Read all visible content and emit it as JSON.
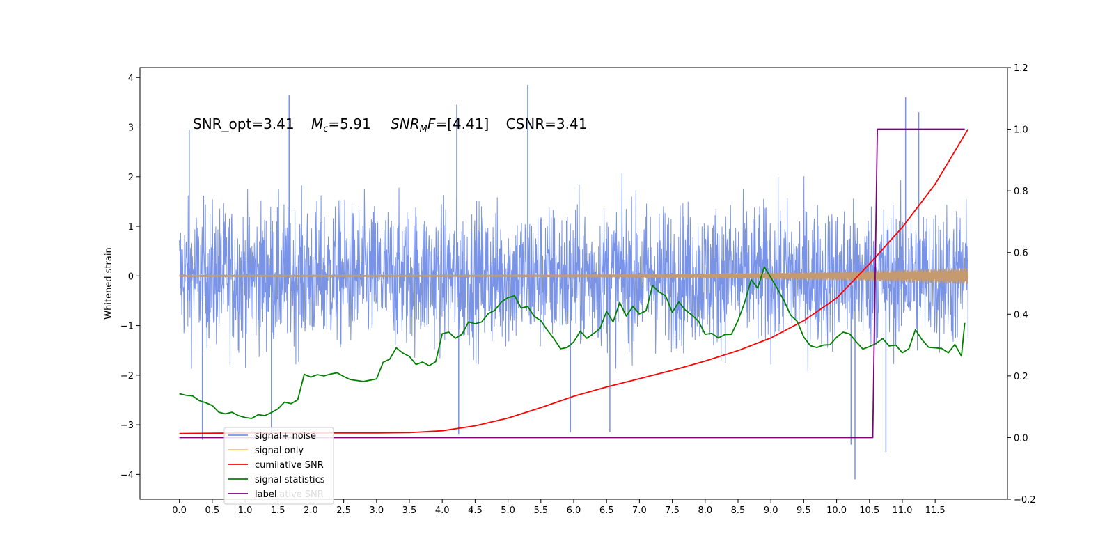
{
  "chart_data": {
    "type": "line",
    "title": "",
    "xlabel": "",
    "ylabel": "Whitened strain",
    "xlim": [
      -0.6,
      12.6
    ],
    "ylim": [
      -4.5,
      4.2
    ],
    "y2lim": [
      -0.2,
      1.2
    ],
    "x_ticks": [
      0.0,
      0.5,
      1.0,
      1.5,
      2.0,
      2.5,
      3.0,
      3.5,
      4.0,
      4.5,
      5.0,
      5.5,
      6.0,
      6.5,
      7.0,
      7.5,
      8.0,
      8.5,
      9.0,
      9.5,
      10.0,
      10.5,
      11.0,
      11.5
    ],
    "x_tick_labels": [
      "0.0",
      "0.5",
      "1.0",
      "1.5",
      "2.0",
      "2.5",
      "3.0",
      "3.5",
      "4.0",
      "4.5",
      "5.0",
      "5.5",
      "6.0",
      "6.5",
      "7.0",
      "7.5",
      "8.0",
      "8.5",
      "9.0",
      "9.5",
      "10.0",
      "10.5",
      "11.0",
      "11.5"
    ],
    "y_ticks": [
      4,
      3,
      2,
      1,
      0,
      -1,
      -2,
      -3,
      -4
    ],
    "y_tick_labels": [
      "4",
      "3",
      "2",
      "1",
      "0",
      "−1",
      "−2",
      "−3",
      "−4"
    ],
    "y2_ticks": [
      1.2,
      1.0,
      0.8,
      0.6,
      0.4,
      0.2,
      0.0,
      -0.2
    ],
    "y2_tick_labels": [
      "1.2",
      "1.0",
      "0.8",
      "0.6",
      "0.4",
      "0.2",
      "0.0",
      "−0.2"
    ],
    "annotation": {
      "snr_opt": "SNR_opt=3.41",
      "mc_symbol": "M",
      "mc_sub": "c",
      "mc_value": "=5.91",
      "snr_mf_symbol": "SNR",
      "snr_mf_sub": "M",
      "snr_mf_f": "F",
      "snr_mf_value": "=[4.41]",
      "csnr": "CSNR=3.41"
    },
    "legend": {
      "placement": "lower-left",
      "entries": [
        "signal+ noise",
        "signal only",
        "cumilative SNR",
        "signal statistics",
        "label"
      ],
      "ghost_text": "cumilative SNR"
    },
    "series": [
      {
        "name": "signal+ noise",
        "axis": "left",
        "color": "#7893e8",
        "style": "noise",
        "x_range": [
          0.0,
          12.0
        ],
        "band": [
          -2.0,
          2.0
        ],
        "spikes": [
          {
            "x": 0.15,
            "y": 2.95
          },
          {
            "x": 0.35,
            "y": -3.3
          },
          {
            "x": 1.4,
            "y": -3.2
          },
          {
            "x": 1.67,
            "y": 3.65
          },
          {
            "x": 4.22,
            "y": 3.45
          },
          {
            "x": 4.25,
            "y": -3.2
          },
          {
            "x": 5.3,
            "y": 3.85
          },
          {
            "x": 5.95,
            "y": -3.15
          },
          {
            "x": 6.55,
            "y": -3.15
          },
          {
            "x": 10.22,
            "y": -3.4
          },
          {
            "x": 10.28,
            "y": -4.1
          },
          {
            "x": 10.75,
            "y": -3.55
          },
          {
            "x": 11.05,
            "y": 3.6
          },
          {
            "x": 11.25,
            "y": 3.3
          }
        ]
      },
      {
        "name": "signal only",
        "axis": "left",
        "color": "#c59a6f",
        "style": "chirp",
        "x_range": [
          0.0,
          12.0
        ],
        "envelope_start": 0.02,
        "envelope_end": 0.17
      },
      {
        "name": "cumilative SNR",
        "axis": "right",
        "color": "#ff0000",
        "x": [
          0.0,
          1.0,
          2.0,
          3.0,
          3.5,
          4.0,
          4.5,
          5.0,
          5.5,
          6.0,
          6.5,
          7.0,
          7.5,
          8.0,
          8.5,
          9.0,
          9.5,
          10.0,
          10.5,
          11.0,
          11.5,
          12.0
        ],
        "values": [
          0.013,
          0.015,
          0.015,
          0.015,
          0.016,
          0.022,
          0.038,
          0.063,
          0.097,
          0.134,
          0.164,
          0.191,
          0.218,
          0.248,
          0.282,
          0.323,
          0.379,
          0.452,
          0.563,
          0.682,
          0.822,
          1.0
        ]
      },
      {
        "name": "signal statistics",
        "axis": "right",
        "color": "#008000",
        "x": [
          0.0,
          0.1,
          0.2,
          0.3,
          0.4,
          0.5,
          0.6,
          0.7,
          0.8,
          0.9,
          1.0,
          1.1,
          1.2,
          1.3,
          1.4,
          1.5,
          1.6,
          1.7,
          1.8,
          1.9,
          2.0,
          2.1,
          2.2,
          2.3,
          2.4,
          2.5,
          2.6,
          2.7,
          2.8,
          2.9,
          3.0,
          3.1,
          3.2,
          3.3,
          3.4,
          3.5,
          3.6,
          3.7,
          3.8,
          3.9,
          4.0,
          4.1,
          4.2,
          4.3,
          4.4,
          4.5,
          4.6,
          4.7,
          4.8,
          4.9,
          5.0,
          5.1,
          5.2,
          5.3,
          5.4,
          5.5,
          5.6,
          5.7,
          5.8,
          5.9,
          6.0,
          6.1,
          6.2,
          6.3,
          6.4,
          6.5,
          6.6,
          6.7,
          6.8,
          6.9,
          7.0,
          7.1,
          7.2,
          7.3,
          7.4,
          7.5,
          7.6,
          7.7,
          7.8,
          7.9,
          8.0,
          8.1,
          8.2,
          8.3,
          8.4,
          8.5,
          8.6,
          8.7,
          8.8,
          8.9,
          9.0,
          9.1,
          9.2,
          9.3,
          9.4,
          9.5,
          9.6,
          9.7,
          9.8,
          9.9,
          10.0,
          10.1,
          10.2,
          10.3,
          10.4,
          10.5,
          10.6,
          10.7,
          10.8,
          10.9,
          11.0,
          11.1,
          11.2,
          11.3,
          11.4,
          11.5,
          11.6,
          11.7,
          11.8,
          11.9,
          11.95
        ],
        "values": [
          0.142,
          0.137,
          0.135,
          0.12,
          0.113,
          0.104,
          0.082,
          0.077,
          0.082,
          0.071,
          0.065,
          0.062,
          0.074,
          0.071,
          0.081,
          0.093,
          0.115,
          0.11,
          0.122,
          0.205,
          0.196,
          0.204,
          0.2,
          0.206,
          0.21,
          0.198,
          0.188,
          0.185,
          0.182,
          0.186,
          0.19,
          0.244,
          0.254,
          0.291,
          0.274,
          0.263,
          0.237,
          0.245,
          0.233,
          0.246,
          0.337,
          0.342,
          0.322,
          0.335,
          0.375,
          0.369,
          0.375,
          0.402,
          0.413,
          0.44,
          0.454,
          0.46,
          0.42,
          0.425,
          0.393,
          0.379,
          0.348,
          0.32,
          0.288,
          0.292,
          0.31,
          0.345,
          0.322,
          0.337,
          0.354,
          0.409,
          0.375,
          0.438,
          0.394,
          0.425,
          0.401,
          0.411,
          0.493,
          0.472,
          0.459,
          0.406,
          0.44,
          0.413,
          0.397,
          0.377,
          0.335,
          0.338,
          0.323,
          0.334,
          0.335,
          0.38,
          0.437,
          0.512,
          0.485,
          0.553,
          0.519,
          0.482,
          0.444,
          0.397,
          0.377,
          0.326,
          0.298,
          0.292,
          0.3,
          0.301,
          0.325,
          0.342,
          0.336,
          0.31,
          0.287,
          0.295,
          0.305,
          0.321,
          0.297,
          0.3,
          0.275,
          0.288,
          0.35,
          0.317,
          0.293,
          0.291,
          0.289,
          0.275,
          0.302,
          0.264,
          0.372
        ]
      },
      {
        "name": "label",
        "axis": "right",
        "color": "#800080",
        "x": [
          0.0,
          10.55,
          10.62,
          11.95
        ],
        "values": [
          0.0,
          0.0,
          1.0,
          1.0
        ]
      }
    ],
    "grid": false
  }
}
